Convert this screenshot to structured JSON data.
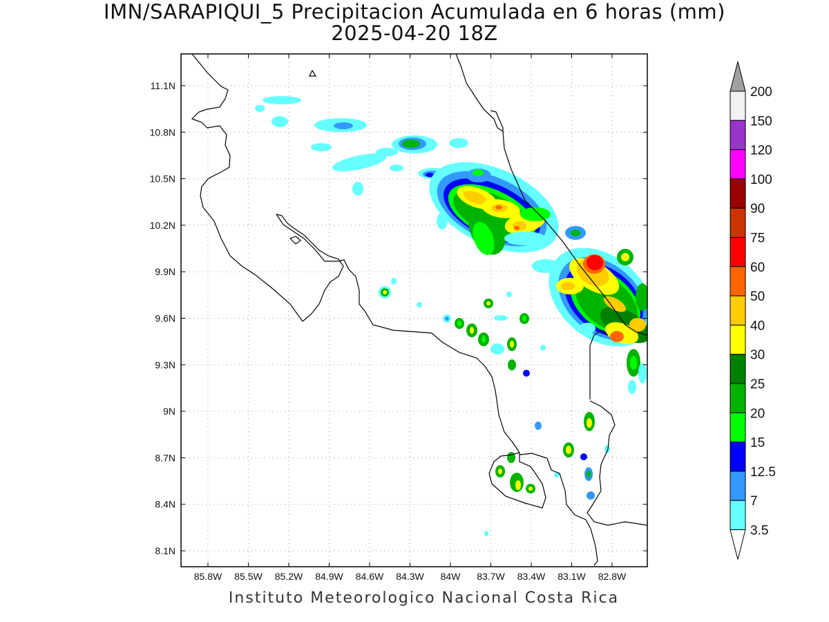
{
  "title": {
    "line1": "IMN/SARAPIQUI_5 Precipitacion Acumulada en 6 horas (mm)",
    "line2": "2025-04-20 18Z"
  },
  "credit": "Instituto Meteorologico Nacional Costa Rica",
  "map": {
    "lon_labels": [
      "85.8W",
      "85.5W",
      "85.2W",
      "84.9W",
      "84.6W",
      "84.3W",
      "84W",
      "83.7W",
      "83.4W",
      "83.1W",
      "82.8W"
    ],
    "lat_labels": [
      "11.1N",
      "10.8N",
      "10.5N",
      "10.2N",
      "9.9N",
      "9.6N",
      "9.3N",
      "9N",
      "8.7N",
      "8.4N",
      "8.1N"
    ],
    "gridlines": true,
    "colors": {
      "coast": "#000000",
      "grid": "#9a9a9a"
    }
  },
  "legend": {
    "labels": [
      "200",
      "150",
      "120",
      "100",
      "90",
      "75",
      "60",
      "50",
      "40",
      "30",
      "25",
      "20",
      "15",
      "12.5",
      "7",
      "3.5"
    ],
    "colors": [
      "#f2f2f2",
      "#9933cc",
      "#ff00ff",
      "#990000",
      "#cc3300",
      "#ff0000",
      "#ff6600",
      "#ffcc00",
      "#ffff00",
      "#008000",
      "#00b300",
      "#00ff00",
      "#0000ff",
      "#3399ff",
      "#66ffff"
    ],
    "overflow_color": "#a0a0a0"
  }
}
